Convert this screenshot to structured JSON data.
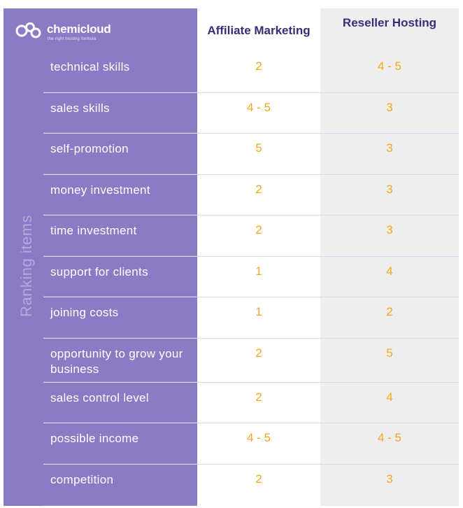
{
  "brand": {
    "name": "chemicloud",
    "tagline": "the right hosting formula",
    "color": "#8b7bc5"
  },
  "columns": {
    "affiliate": "Affiliate Marketing",
    "reseller": "Reseller Hosting"
  },
  "side_label": "Ranking items",
  "accent_color": "#f2a81d",
  "rows": [
    {
      "item": "technical skills",
      "affiliate": "2",
      "reseller": "4 - 5"
    },
    {
      "item": "sales skills",
      "affiliate": "4 - 5",
      "reseller": "3"
    },
    {
      "item": "self-promotion",
      "affiliate": "5",
      "reseller": "3"
    },
    {
      "item": "money investment",
      "affiliate": "2",
      "reseller": "3"
    },
    {
      "item": "time investment",
      "affiliate": "2",
      "reseller": "3"
    },
    {
      "item": "support for clients",
      "affiliate": "1",
      "reseller": "4"
    },
    {
      "item": "joining costs",
      "affiliate": "1",
      "reseller": "2"
    },
    {
      "item": "opportunity to grow your business",
      "affiliate": "2",
      "reseller": "5"
    },
    {
      "item": "sales control level",
      "affiliate": "2",
      "reseller": "4"
    },
    {
      "item": "possible income",
      "affiliate": "4 - 5",
      "reseller": "4 - 5"
    },
    {
      "item": "competition",
      "affiliate": "2",
      "reseller": "3"
    }
  ]
}
